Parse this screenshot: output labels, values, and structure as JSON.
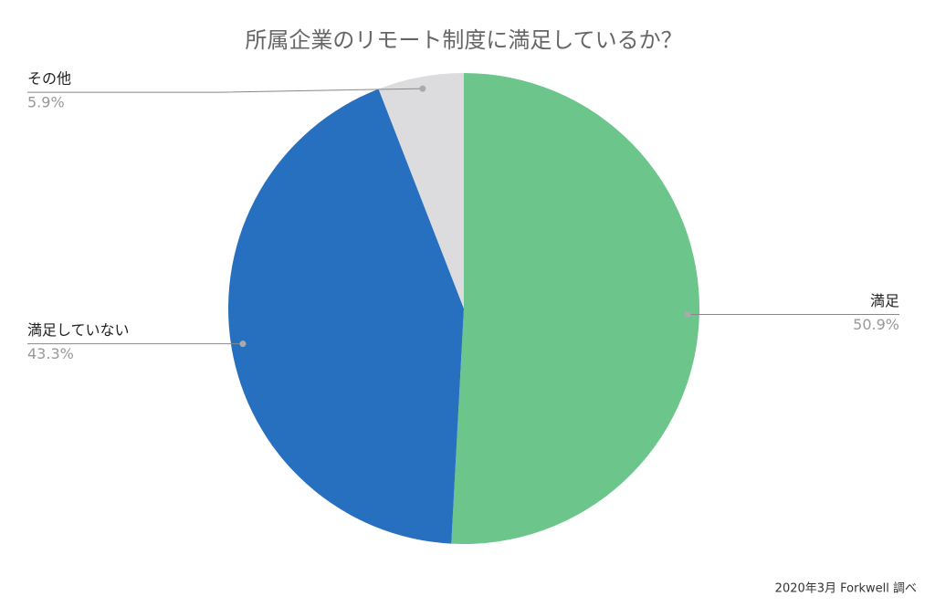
{
  "chart_data": {
    "type": "pie",
    "title": "所属企業のリモート制度に満足しているか？",
    "categories": [
      "満足",
      "満足していない",
      "その他"
    ],
    "values": [
      50.9,
      43.3,
      5.9
    ],
    "value_labels": [
      "50.9%",
      "43.3%",
      "5.9%"
    ],
    "colors": [
      "#6cc58a",
      "#276fbf",
      "#dcdcdf"
    ],
    "source": "2020年3月 Forkwell 調べ"
  }
}
